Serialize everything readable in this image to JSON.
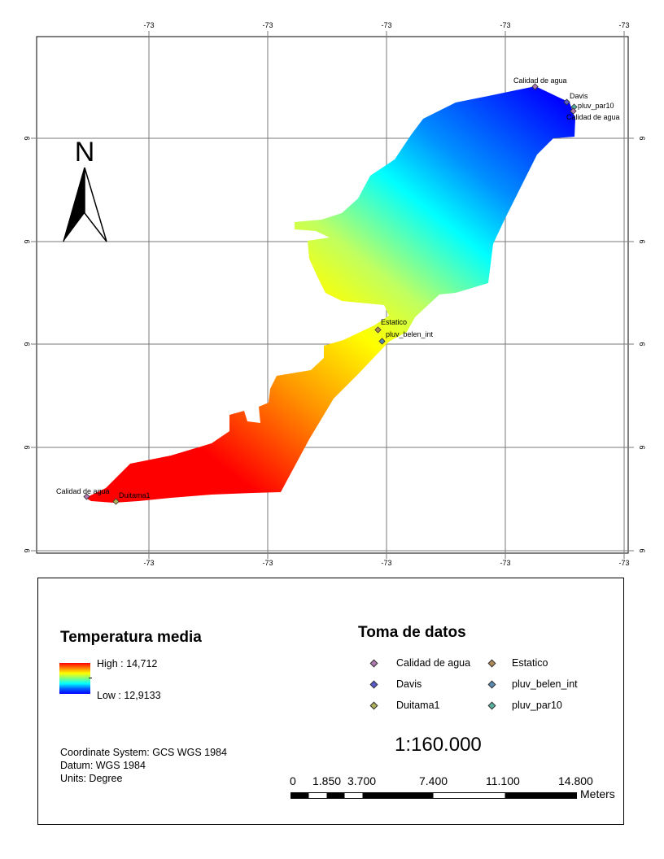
{
  "map": {
    "grid_labels": {
      "top": [
        "-73",
        "-73",
        "-73",
        "-73",
        "-73"
      ],
      "bottom": [
        "-73",
        "-73",
        "-73",
        "-73",
        "-73"
      ],
      "left": [
        "6",
        "6",
        "6",
        "6",
        "6"
      ],
      "right": [
        "6",
        "6",
        "6",
        "6",
        "6"
      ]
    },
    "north_arrow": {
      "label": "N"
    },
    "points": [
      {
        "label": "Calidad de agua",
        "type": "Calidad de agua",
        "color": "#b07ab0"
      },
      {
        "label": "Davis",
        "type": "Davis",
        "color": "#5a5ad0"
      },
      {
        "label": "pluv_par10",
        "type": "pluv_par10",
        "color": "#5ab0a0"
      },
      {
        "label": "Calidad de agua",
        "type": "Calidad de agua",
        "color": "#b07ab0"
      },
      {
        "label": "Estatico",
        "type": "Estatico",
        "color": "#b08a5a"
      },
      {
        "label": "pluv_belen_int",
        "type": "pluv_belen_int",
        "color": "#5a8ab0"
      },
      {
        "label": "Calidad de agua",
        "type": "Calidad de agua",
        "color": "#b07ab0"
      },
      {
        "label": "Duitama1",
        "type": "Duitama1",
        "color": "#b0b05a"
      }
    ]
  },
  "legend": {
    "temperature": {
      "title": "Temperatura media",
      "high_label": "High : 14,712",
      "low_label": "Low : 12,9133",
      "high": 14.712,
      "low": 12.9133
    },
    "data_points": {
      "title": "Toma de datos",
      "items": [
        {
          "label": "Calidad de agua",
          "color": "#b07ab0"
        },
        {
          "label": "Estatico",
          "color": "#b08a5a"
        },
        {
          "label": "Davis",
          "color": "#5a5ad0"
        },
        {
          "label": "pluv_belen_int",
          "color": "#5a8ab0"
        },
        {
          "label": "Duitama1",
          "color": "#b0b05a"
        },
        {
          "label": "pluv_par10",
          "color": "#5ab0a0"
        }
      ]
    },
    "coordinate_system": "Coordinate System: GCS WGS 1984",
    "datum": "Datum: WGS 1984",
    "units": "Units: Degree",
    "scale": "1:160.000",
    "scalebar": {
      "labels": [
        "0",
        "1.850",
        "3.700",
        "7.400",
        "11.100",
        "14.800"
      ],
      "unit": "Meters"
    }
  }
}
